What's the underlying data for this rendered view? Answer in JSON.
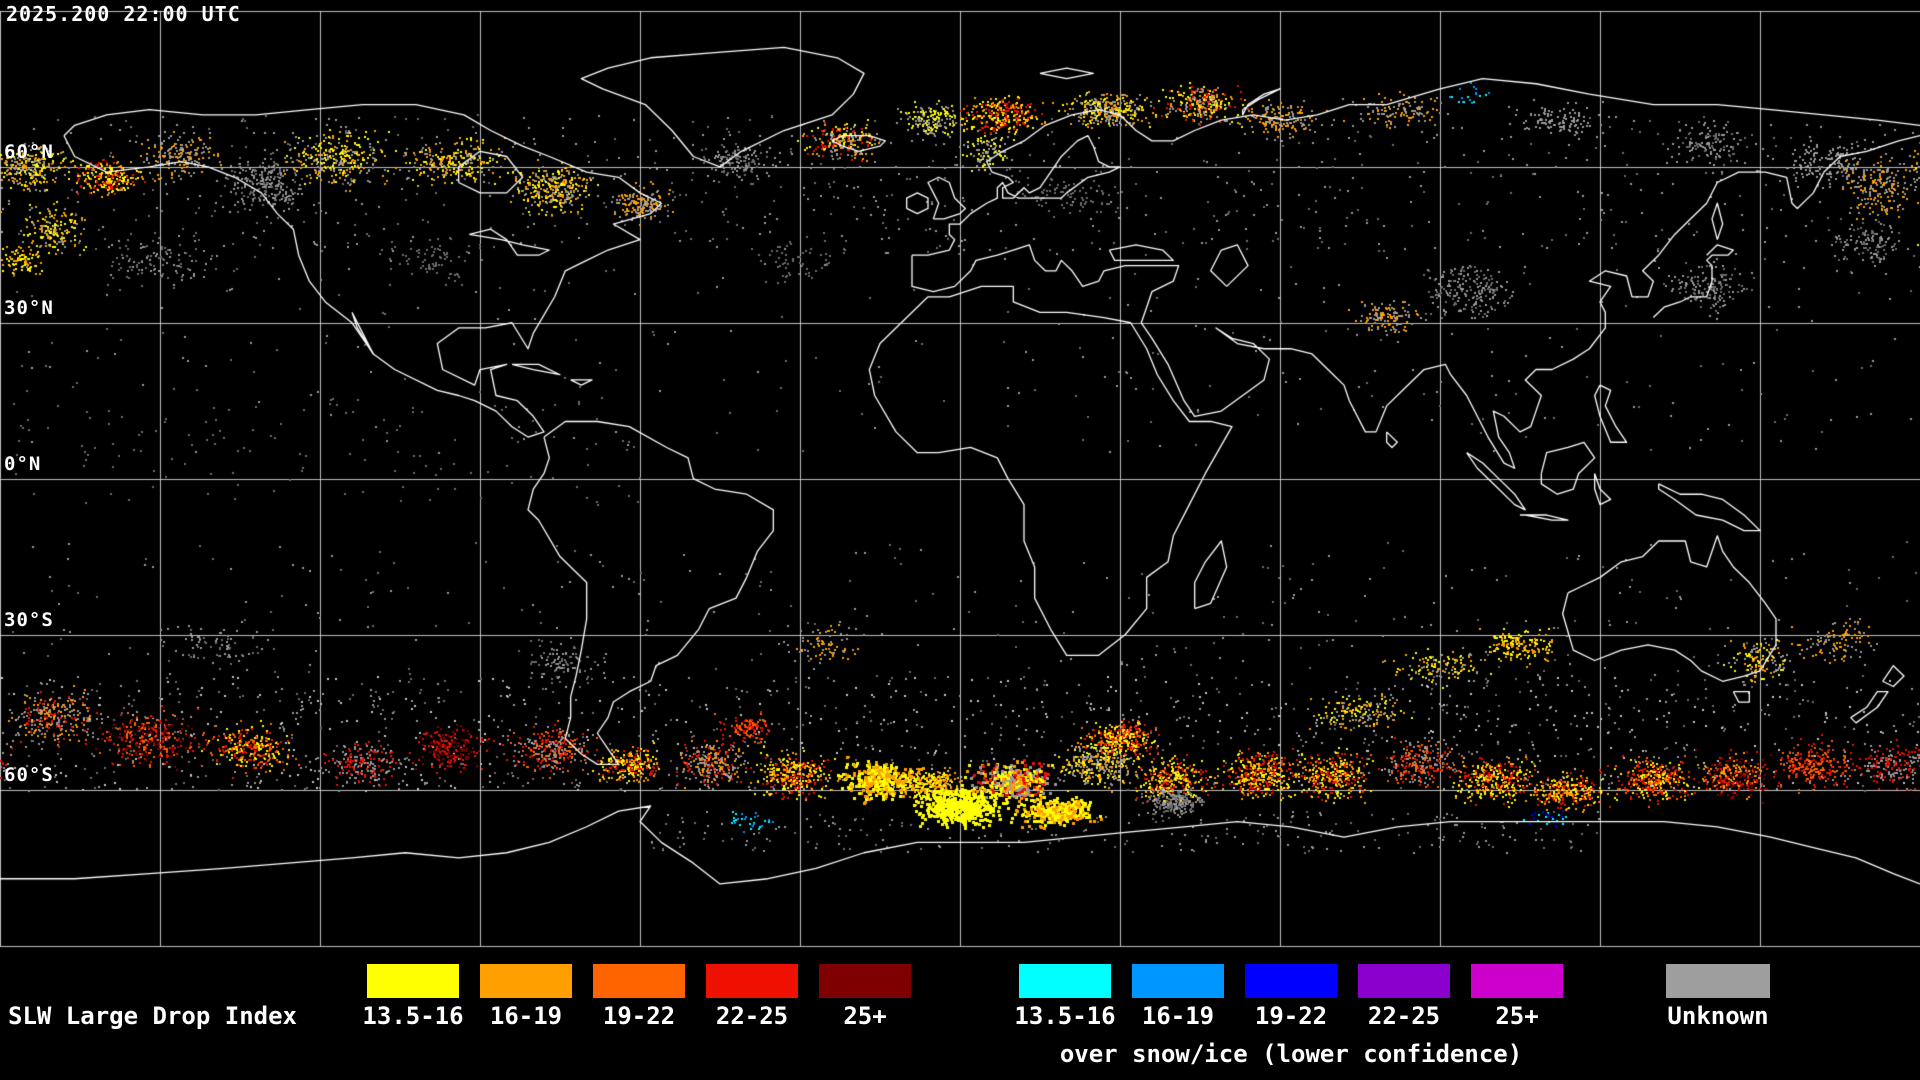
{
  "header": {
    "timestamp": "2025.200 22:00 UTC"
  },
  "map": {
    "background_color": "#000000",
    "coastline_color": "#FFFFFF",
    "grid_color": "#E0E0E0",
    "grid_lon_step_deg": 30,
    "grid_lat_step_deg": 30,
    "latitude_labels": [
      {
        "label": "60°N",
        "lat": 60
      },
      {
        "label": "30°N",
        "lat": 30
      },
      {
        "label": "0°N",
        "lat": 0
      },
      {
        "label": "30°S",
        "lat": -30
      },
      {
        "label": "60°S",
        "lat": -60
      }
    ]
  },
  "legend": {
    "title": "SLW Large Drop Index",
    "ranges": [
      "13.5-16",
      "16-19",
      "19-22",
      "22-25",
      "25+"
    ],
    "normal_colors": [
      "#FFFF00",
      "#FFA000",
      "#FF6400",
      "#EE1000",
      "#7E0000"
    ],
    "snow_ranges": [
      "13.5-16",
      "16-19",
      "19-22",
      "22-25",
      "25+"
    ],
    "snow_colors": [
      "#00FFFF",
      "#0096FF",
      "#0000FF",
      "#8A00CC",
      "#CC00CC"
    ],
    "snow_caption": "over snow/ice (lower confidence)",
    "unknown_label": "Unknown",
    "unknown_color": "#9E9E9E"
  },
  "palette": {
    "y": "#FFFF00",
    "o": "#FFA000",
    "O": "#FF6400",
    "r": "#EE1000",
    "d": "#7E0000",
    "g": "#9A9A9A",
    "h": "#6B6B6B",
    "w": "#C6C6C6",
    "c": "#00FFFF",
    "b": "#0096FF",
    "B": "#0000FF",
    "p": "#8A00CC",
    "m": "#CC00CC"
  },
  "clusters": [
    {
      "lo": 0,
      "la": 57,
      "dlo": 180,
      "dla": 13,
      "n": 800,
      "c": [
        "g",
        "h"
      ],
      "u": 1
    },
    {
      "lo": 0,
      "la": -49,
      "dlo": 180,
      "dla": 11,
      "n": 1400,
      "c": [
        "g",
        "h",
        "w"
      ],
      "u": 1
    },
    {
      "lo": 0,
      "la": 25,
      "dlo": 180,
      "dla": 20,
      "n": 350,
      "c": [
        "h",
        "g"
      ],
      "u": 1
    },
    {
      "lo": 0,
      "la": -25,
      "dlo": 180,
      "dla": 13,
      "n": 300,
      "c": [
        "h",
        "g"
      ],
      "u": 1
    },
    {
      "lo": 30,
      "la": -68,
      "dlo": 90,
      "dla": 4,
      "n": 250,
      "c": [
        "g",
        "h"
      ],
      "u": 1
    },
    {
      "lo": -120,
      "la": 5,
      "dlo": 60,
      "dla": 10,
      "n": 120,
      "c": [
        "h"
      ],
      "u": 1
    },
    {
      "lo": -175,
      "la": 60,
      "dlo": 8,
      "dla": 5,
      "n": 260,
      "c": [
        "o",
        "y",
        "g"
      ]
    },
    {
      "lo": -170,
      "la": 48,
      "dlo": 6,
      "dla": 5,
      "n": 160,
      "c": [
        "o",
        "g",
        "y"
      ]
    },
    {
      "lo": -176,
      "la": 42,
      "dlo": 5,
      "dla": 3,
      "n": 90,
      "c": [
        "y",
        "o"
      ]
    },
    {
      "lo": -160,
      "la": 58,
      "dlo": 7,
      "dla": 4,
      "n": 220,
      "c": [
        "o",
        "y",
        "r"
      ]
    },
    {
      "lo": -146,
      "la": 62,
      "dlo": 9,
      "dla": 5,
      "n": 160,
      "c": [
        "g",
        "o"
      ]
    },
    {
      "lo": -130,
      "la": 57,
      "dlo": 8,
      "dla": 6,
      "n": 240,
      "c": [
        "g",
        "h"
      ]
    },
    {
      "lo": -117,
      "la": 62,
      "dlo": 11,
      "dla": 6,
      "n": 280,
      "c": [
        "g",
        "o",
        "y"
      ]
    },
    {
      "lo": -95,
      "la": 61,
      "dlo": 11,
      "dla": 5,
      "n": 240,
      "c": [
        "g",
        "y",
        "o"
      ]
    },
    {
      "lo": -76,
      "la": 56,
      "dlo": 8,
      "dla": 5,
      "n": 300,
      "c": [
        "o",
        "y",
        "g"
      ]
    },
    {
      "lo": -60,
      "la": 53,
      "dlo": 6,
      "dla": 4,
      "n": 150,
      "c": [
        "g",
        "o"
      ]
    },
    {
      "lo": -42,
      "la": 61,
      "dlo": 8,
      "dla": 4,
      "n": 130,
      "c": [
        "g",
        "h"
      ]
    },
    {
      "lo": -22,
      "la": 65,
      "dlo": 8,
      "dla": 4,
      "n": 220,
      "c": [
        "y",
        "o",
        "r",
        "g"
      ]
    },
    {
      "lo": -5,
      "la": 69,
      "dlo": 8,
      "dla": 4,
      "n": 160,
      "c": [
        "g",
        "y"
      ]
    },
    {
      "lo": 5,
      "la": 63,
      "dlo": 5,
      "dla": 4,
      "n": 90,
      "c": [
        "g",
        "y"
      ]
    },
    {
      "lo": 8,
      "la": 70,
      "dlo": 9,
      "dla": 4,
      "n": 260,
      "c": [
        "y",
        "o",
        "r"
      ]
    },
    {
      "lo": 28,
      "la": 71,
      "dlo": 9,
      "dla": 4,
      "n": 300,
      "c": [
        "y",
        "o",
        "g"
      ]
    },
    {
      "lo": 45,
      "la": 72,
      "dlo": 9,
      "dla": 4,
      "n": 260,
      "c": [
        "y",
        "o",
        "r",
        "g"
      ]
    },
    {
      "lo": 60,
      "la": 69,
      "dlo": 9,
      "dla": 4,
      "n": 150,
      "c": [
        "g",
        "o"
      ]
    },
    {
      "lo": 82,
      "la": 71,
      "dlo": 10,
      "dla": 4,
      "n": 120,
      "c": [
        "g",
        "o"
      ]
    },
    {
      "lo": 112,
      "la": 69,
      "dlo": 10,
      "dla": 4,
      "n": 110,
      "c": [
        "g"
      ]
    },
    {
      "lo": 140,
      "la": 64,
      "dlo": 9,
      "dla": 5,
      "n": 130,
      "c": [
        "g",
        "h"
      ]
    },
    {
      "lo": 163,
      "la": 61,
      "dlo": 9,
      "dla": 5,
      "n": 150,
      "c": [
        "g"
      ]
    },
    {
      "lo": 172,
      "la": 56,
      "dlo": 8,
      "dla": 7,
      "n": 180,
      "c": [
        "g",
        "o"
      ]
    },
    {
      "lo": -150,
      "la": 42,
      "dlo": 13,
      "dla": 6,
      "n": 110,
      "c": [
        "h",
        "g"
      ]
    },
    {
      "lo": 170,
      "la": 45,
      "dlo": 9,
      "dla": 5,
      "n": 120,
      "c": [
        "g",
        "h"
      ]
    },
    {
      "lo": 140,
      "la": 37,
      "dlo": 8,
      "dla": 5,
      "n": 150,
      "c": [
        "g",
        "h"
      ]
    },
    {
      "lo": 95,
      "la": 36,
      "dlo": 10,
      "dla": 6,
      "n": 200,
      "c": [
        "g",
        "h"
      ]
    },
    {
      "lo": 80,
      "la": 31,
      "dlo": 7,
      "dla": 4,
      "n": 120,
      "c": [
        "g",
        "o"
      ]
    },
    {
      "lo": 20,
      "la": 55,
      "dlo": 12,
      "dla": 5,
      "n": 90,
      "c": [
        "h"
      ]
    },
    {
      "lo": -100,
      "la": 42,
      "dlo": 12,
      "dla": 5,
      "n": 80,
      "c": [
        "h"
      ]
    },
    {
      "lo": -30,
      "la": 42,
      "dlo": 10,
      "dla": 5,
      "n": 60,
      "c": [
        "h"
      ]
    },
    {
      "lo": -170,
      "la": -46,
      "dlo": 9,
      "dla": 6,
      "n": 240,
      "c": [
        "r",
        "o",
        "g"
      ]
    },
    {
      "lo": -152,
      "la": -50,
      "dlo": 11,
      "dla": 6,
      "n": 300,
      "c": [
        "r",
        "d",
        "O"
      ]
    },
    {
      "lo": -133,
      "la": -52,
      "dlo": 9,
      "dla": 5,
      "n": 260,
      "c": [
        "r",
        "O",
        "y"
      ]
    },
    {
      "lo": -112,
      "la": -55,
      "dlo": 9,
      "dla": 5,
      "n": 200,
      "c": [
        "g",
        "r"
      ]
    },
    {
      "lo": -96,
      "la": -52,
      "dlo": 8,
      "dla": 5,
      "n": 200,
      "c": [
        "r",
        "d"
      ]
    },
    {
      "lo": -77,
      "la": -52,
      "dlo": 8,
      "dla": 5,
      "n": 260,
      "c": [
        "r",
        "O",
        "g"
      ]
    },
    {
      "lo": -62,
      "la": -55,
      "dlo": 7,
      "dla": 4,
      "n": 220,
      "c": [
        "r",
        "y",
        "o"
      ]
    },
    {
      "lo": -46,
      "la": -55,
      "dlo": 8,
      "dla": 5,
      "n": 240,
      "c": [
        "g",
        "r",
        "o"
      ]
    },
    {
      "lo": -40,
      "la": -48,
      "dlo": 6,
      "dla": 3,
      "n": 110,
      "c": [
        "r",
        "O"
      ]
    },
    {
      "lo": -31,
      "la": -57,
      "dlo": 8,
      "dla": 5,
      "n": 300,
      "c": [
        "y",
        "o",
        "r"
      ]
    },
    {
      "lo": -15,
      "la": -58,
      "dlo": 8,
      "dla": 4,
      "n": 380,
      "c": [
        "y",
        "o"
      ],
      "s": 3
    },
    {
      "lo": -5,
      "la": -59,
      "dlo": 6,
      "dla": 4,
      "n": 300,
      "c": [
        "y",
        "o"
      ]
    },
    {
      "lo": 0,
      "la": -63,
      "dlo": 9,
      "dla": 4,
      "n": 500,
      "c": [
        "y"
      ],
      "s": 3
    },
    {
      "lo": 10,
      "la": -58,
      "dlo": 8,
      "dla": 4,
      "n": 400,
      "c": [
        "y",
        "o",
        "r",
        "g"
      ],
      "s": 3
    },
    {
      "lo": 18,
      "la": -64,
      "dlo": 8,
      "dla": 3,
      "n": 350,
      "c": [
        "y",
        "y",
        "o"
      ],
      "s": 3
    },
    {
      "lo": 26,
      "la": -55,
      "dlo": 8,
      "dla": 5,
      "n": 300,
      "c": [
        "g",
        "y",
        "o"
      ]
    },
    {
      "lo": 30,
      "la": -50,
      "dlo": 7,
      "dla": 4,
      "n": 320,
      "c": [
        "r",
        "O",
        "y"
      ]
    },
    {
      "lo": 40,
      "la": -58,
      "dlo": 8,
      "dla": 5,
      "n": 280,
      "c": [
        "y",
        "o",
        "r"
      ]
    },
    {
      "lo": 40,
      "la": -62,
      "dlo": 7,
      "dla": 3,
      "n": 220,
      "c": [
        "g",
        "h"
      ]
    },
    {
      "lo": 56,
      "la": -57,
      "dlo": 8,
      "dla": 5,
      "n": 340,
      "c": [
        "o",
        "y",
        "r"
      ]
    },
    {
      "lo": 70,
      "la": -57,
      "dlo": 8,
      "dla": 5,
      "n": 300,
      "c": [
        "y",
        "o",
        "r"
      ]
    },
    {
      "lo": 75,
      "la": -45,
      "dlo": 10,
      "dla": 4,
      "n": 150,
      "c": [
        "o",
        "y",
        "g"
      ]
    },
    {
      "lo": 86,
      "la": -55,
      "dlo": 8,
      "dla": 5,
      "n": 240,
      "c": [
        "O",
        "r",
        "g"
      ]
    },
    {
      "lo": 100,
      "la": -58,
      "dlo": 8,
      "dla": 5,
      "n": 300,
      "c": [
        "y",
        "o",
        "r"
      ]
    },
    {
      "lo": 114,
      "la": -60,
      "dlo": 8,
      "dla": 4,
      "n": 260,
      "c": [
        "o",
        "r",
        "y"
      ]
    },
    {
      "lo": 130,
      "la": -58,
      "dlo": 8,
      "dla": 5,
      "n": 300,
      "c": [
        "r",
        "O",
        "y"
      ]
    },
    {
      "lo": 145,
      "la": -57,
      "dlo": 8,
      "dla": 5,
      "n": 260,
      "c": [
        "r",
        "d",
        "o"
      ]
    },
    {
      "lo": 160,
      "la": -55,
      "dlo": 8,
      "dla": 5,
      "n": 240,
      "c": [
        "r",
        "O"
      ]
    },
    {
      "lo": 175,
      "la": -55,
      "dlo": 8,
      "dla": 5,
      "n": 200,
      "c": [
        "r",
        "g"
      ]
    },
    {
      "lo": 105,
      "la": -32,
      "dlo": 8,
      "dla": 4,
      "n": 160,
      "c": [
        "y",
        "o"
      ]
    },
    {
      "lo": 90,
      "la": -36,
      "dlo": 10,
      "dla": 4,
      "n": 120,
      "c": [
        "g",
        "o",
        "y"
      ]
    },
    {
      "lo": 150,
      "la": -35,
      "dlo": 8,
      "dla": 5,
      "n": 140,
      "c": [
        "o",
        "y",
        "g"
      ]
    },
    {
      "lo": 165,
      "la": -31,
      "dlo": 8,
      "dla": 5,
      "n": 100,
      "c": [
        "o",
        "g"
      ]
    },
    {
      "lo": -140,
      "la": -32,
      "dlo": 12,
      "dla": 5,
      "n": 80,
      "c": [
        "g",
        "h"
      ]
    },
    {
      "lo": -75,
      "la": -35,
      "dlo": 7,
      "dla": 5,
      "n": 90,
      "c": [
        "h",
        "g"
      ]
    },
    {
      "lo": -25,
      "la": -32,
      "dlo": 9,
      "dla": 5,
      "n": 80,
      "c": [
        "g",
        "o"
      ]
    },
    {
      "lo": -40,
      "la": -66,
      "dlo": 5,
      "dla": 2,
      "n": 30,
      "c": [
        "c",
        "b"
      ]
    },
    {
      "lo": 110,
      "la": -65,
      "dlo": 6,
      "dla": 2,
      "n": 25,
      "c": [
        "c",
        "B"
      ]
    },
    {
      "lo": 95,
      "la": 74,
      "dlo": 6,
      "dla": 3,
      "n": 20,
      "c": [
        "b",
        "c"
      ]
    }
  ]
}
